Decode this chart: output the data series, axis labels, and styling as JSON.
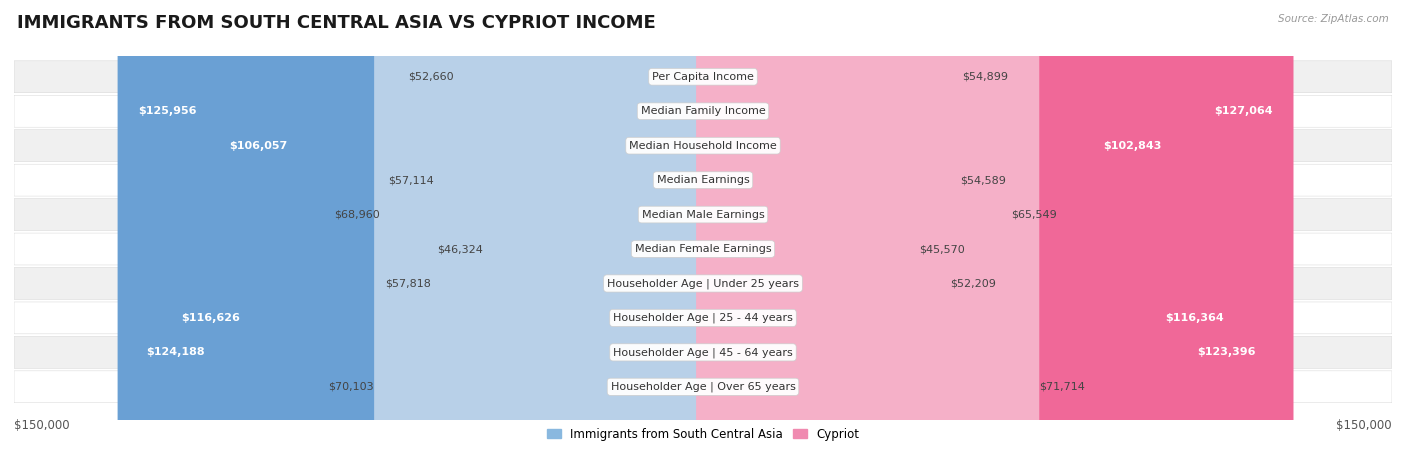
{
  "title": "IMMIGRANTS FROM SOUTH CENTRAL ASIA VS CYPRIOT INCOME",
  "source": "Source: ZipAtlas.com",
  "categories": [
    "Per Capita Income",
    "Median Family Income",
    "Median Household Income",
    "Median Earnings",
    "Median Male Earnings",
    "Median Female Earnings",
    "Householder Age | Under 25 years",
    "Householder Age | 25 - 44 years",
    "Householder Age | 45 - 64 years",
    "Householder Age | Over 65 years"
  ],
  "left_values": [
    52660,
    125956,
    106057,
    57114,
    68960,
    46324,
    57818,
    116626,
    124188,
    70103
  ],
  "right_values": [
    54899,
    127064,
    102843,
    54589,
    65549,
    45570,
    52209,
    116364,
    123396,
    71714
  ],
  "left_labels": [
    "$52,660",
    "$125,956",
    "$106,057",
    "$57,114",
    "$68,960",
    "$46,324",
    "$57,818",
    "$116,626",
    "$124,188",
    "$70,103"
  ],
  "right_labels": [
    "$54,899",
    "$127,064",
    "$102,843",
    "$54,589",
    "$65,549",
    "$45,570",
    "$52,209",
    "$116,364",
    "$123,396",
    "$71,714"
  ],
  "left_color_light": "#b8d0e8",
  "left_color_dark": "#6aa0d4",
  "right_color_light": "#f5b0c8",
  "right_color_dark": "#f06898",
  "left_legend_color": "#89b8df",
  "right_legend_color": "#f08ab0",
  "max_value": 150000,
  "fig_bg": "#ffffff",
  "row_bg_even": "#f0f0f0",
  "row_bg_odd": "#ffffff",
  "title_fontsize": 13,
  "label_fontsize": 8,
  "category_fontsize": 8,
  "legend_label_left": "Immigrants from South Central Asia",
  "legend_label_right": "Cypriot",
  "xlabel_left": "$150,000",
  "xlabel_right": "$150,000",
  "inside_label_threshold": 0.5
}
